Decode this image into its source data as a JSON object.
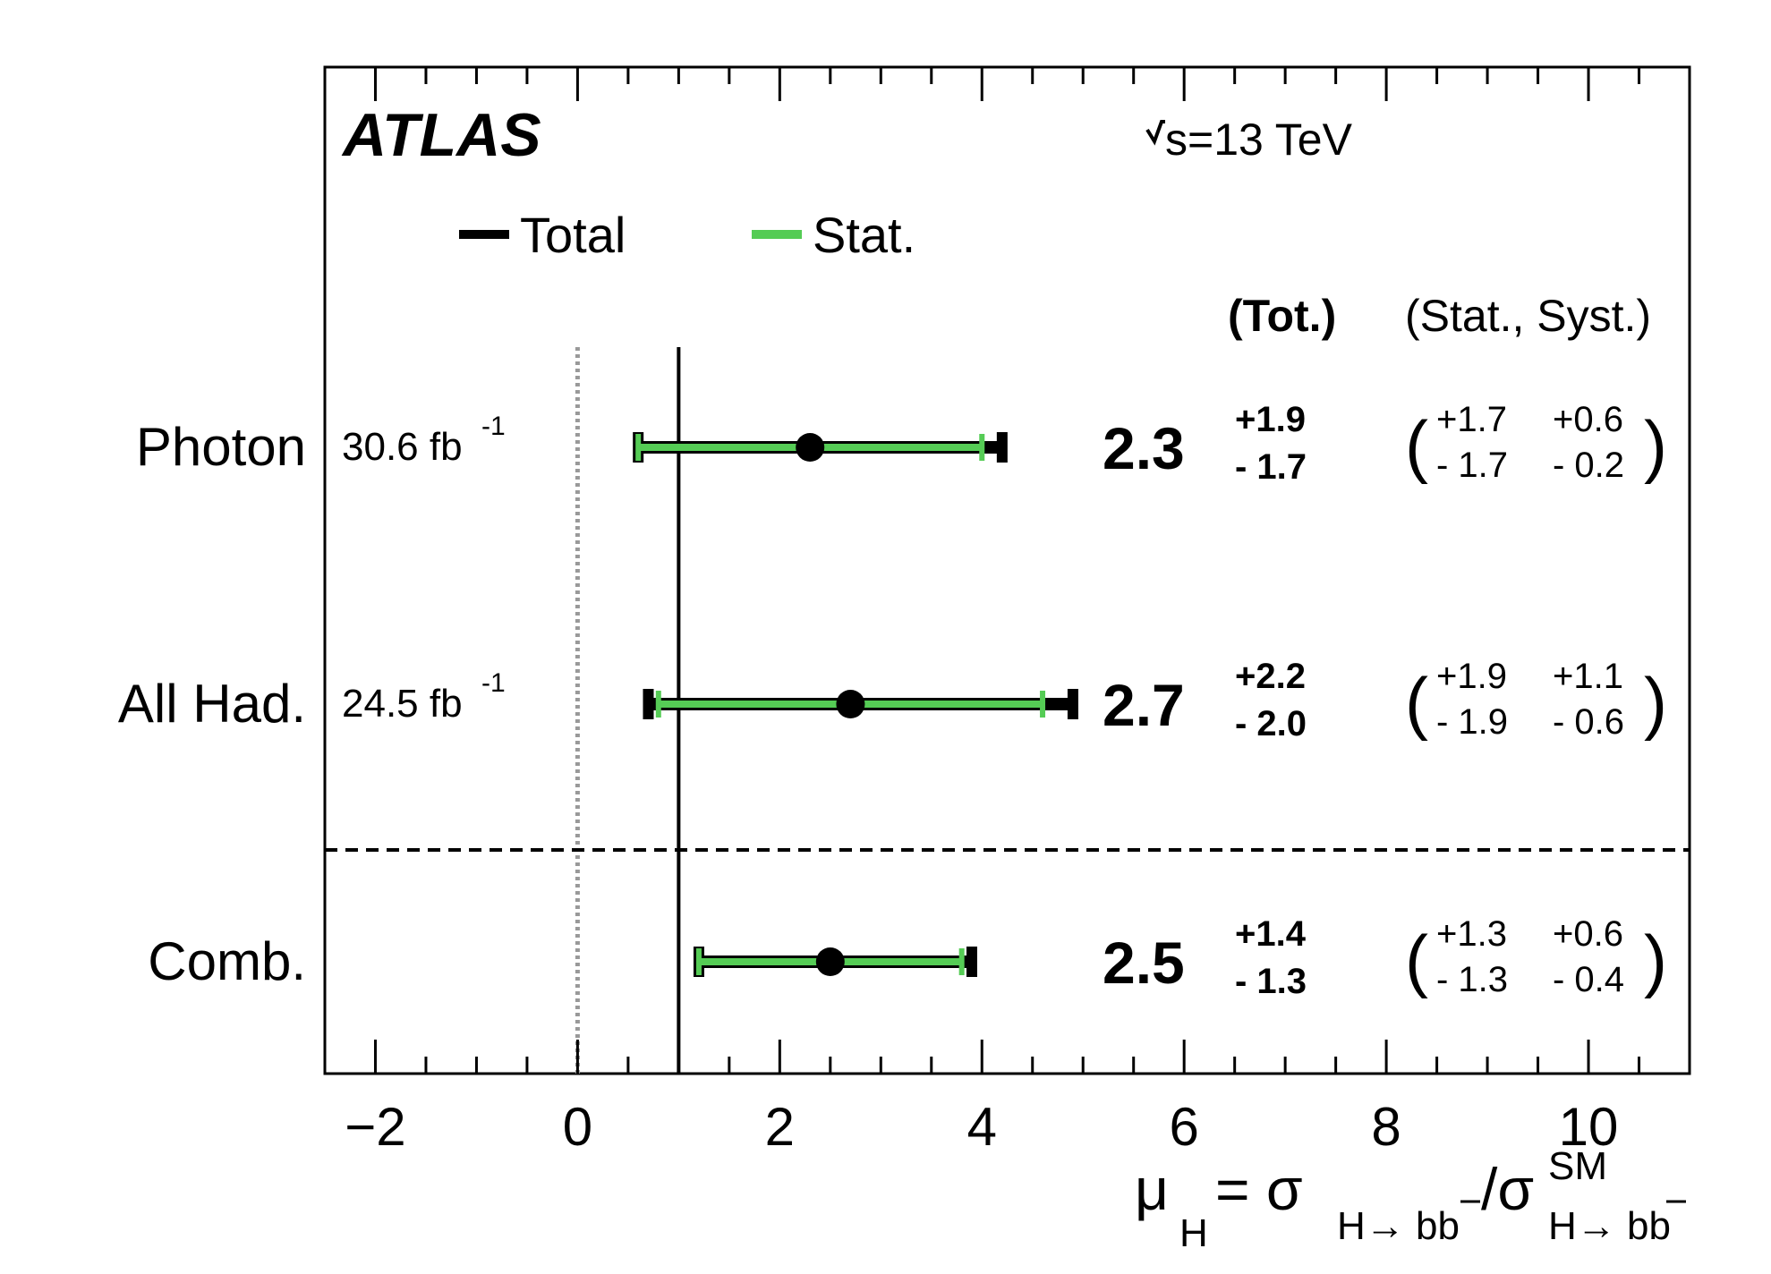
{
  "chart_data": {
    "type": "scatter",
    "experiment": "ATLAS",
    "energy_label": "s=13 TeV",
    "xlim": [
      -2.5,
      11
    ],
    "xticks": [
      "−2",
      "0",
      "2",
      "4",
      "6",
      "8",
      "10"
    ],
    "xtick_values": [
      -2,
      0,
      2,
      4,
      6,
      8,
      10
    ],
    "reference_lines": [
      {
        "x": 1,
        "style": "solid",
        "color": "#000000"
      },
      {
        "x": 0,
        "style": "dotted",
        "color": "#999999"
      }
    ],
    "xlabel": {
      "mu": "μ",
      "mu_sub": "H",
      "equals_sigma": " = σ",
      "sigma_sub": "H→ bb",
      "slash_sigma": "/σ",
      "sm_sup": "SM",
      "sm_sub": "H→ bb"
    },
    "legend": {
      "placement": "top-left",
      "items": [
        {
          "name": "Total",
          "color": "#000000"
        },
        {
          "name": "Stat.",
          "color": "#55cc55"
        }
      ]
    },
    "header": {
      "tot": "(Tot.)",
      "stat_syst": "(Stat., Syst.)"
    },
    "rows": [
      {
        "label": "Photon",
        "lumi": "30.6 fb",
        "lumi_sup": "-1",
        "value": 2.3,
        "value_text": "2.3",
        "tot_up": 1.9,
        "tot_down": 1.7,
        "tot_up_text": "+1.9",
        "tot_down_text": "- 1.7",
        "stat_up": 1.7,
        "stat_down": 1.7,
        "stat_up_text": "+1.7",
        "stat_down_text": "- 1.7",
        "syst_up_text": "+0.6",
        "syst_down_text": "- 0.2"
      },
      {
        "label": "All Had.",
        "lumi": "24.5 fb",
        "lumi_sup": "-1",
        "value": 2.7,
        "value_text": "2.7",
        "tot_up": 2.2,
        "tot_down": 2.0,
        "tot_up_text": "+2.2",
        "tot_down_text": "- 2.0",
        "stat_up": 1.9,
        "stat_down": 1.9,
        "stat_up_text": "+1.9",
        "stat_down_text": "- 1.9",
        "syst_up_text": "+1.1",
        "syst_down_text": "- 0.6"
      },
      {
        "label": "Comb.",
        "lumi": "",
        "lumi_sup": "",
        "value": 2.5,
        "value_text": "2.5",
        "tot_up": 1.4,
        "tot_down": 1.3,
        "tot_up_text": "+1.4",
        "tot_down_text": "- 1.3",
        "stat_up": 1.3,
        "stat_down": 1.3,
        "stat_up_text": "+1.3",
        "stat_down_text": "- 1.3",
        "syst_up_text": "+0.6",
        "syst_down_text": "- 0.4"
      }
    ],
    "separator_after_row": 1
  }
}
